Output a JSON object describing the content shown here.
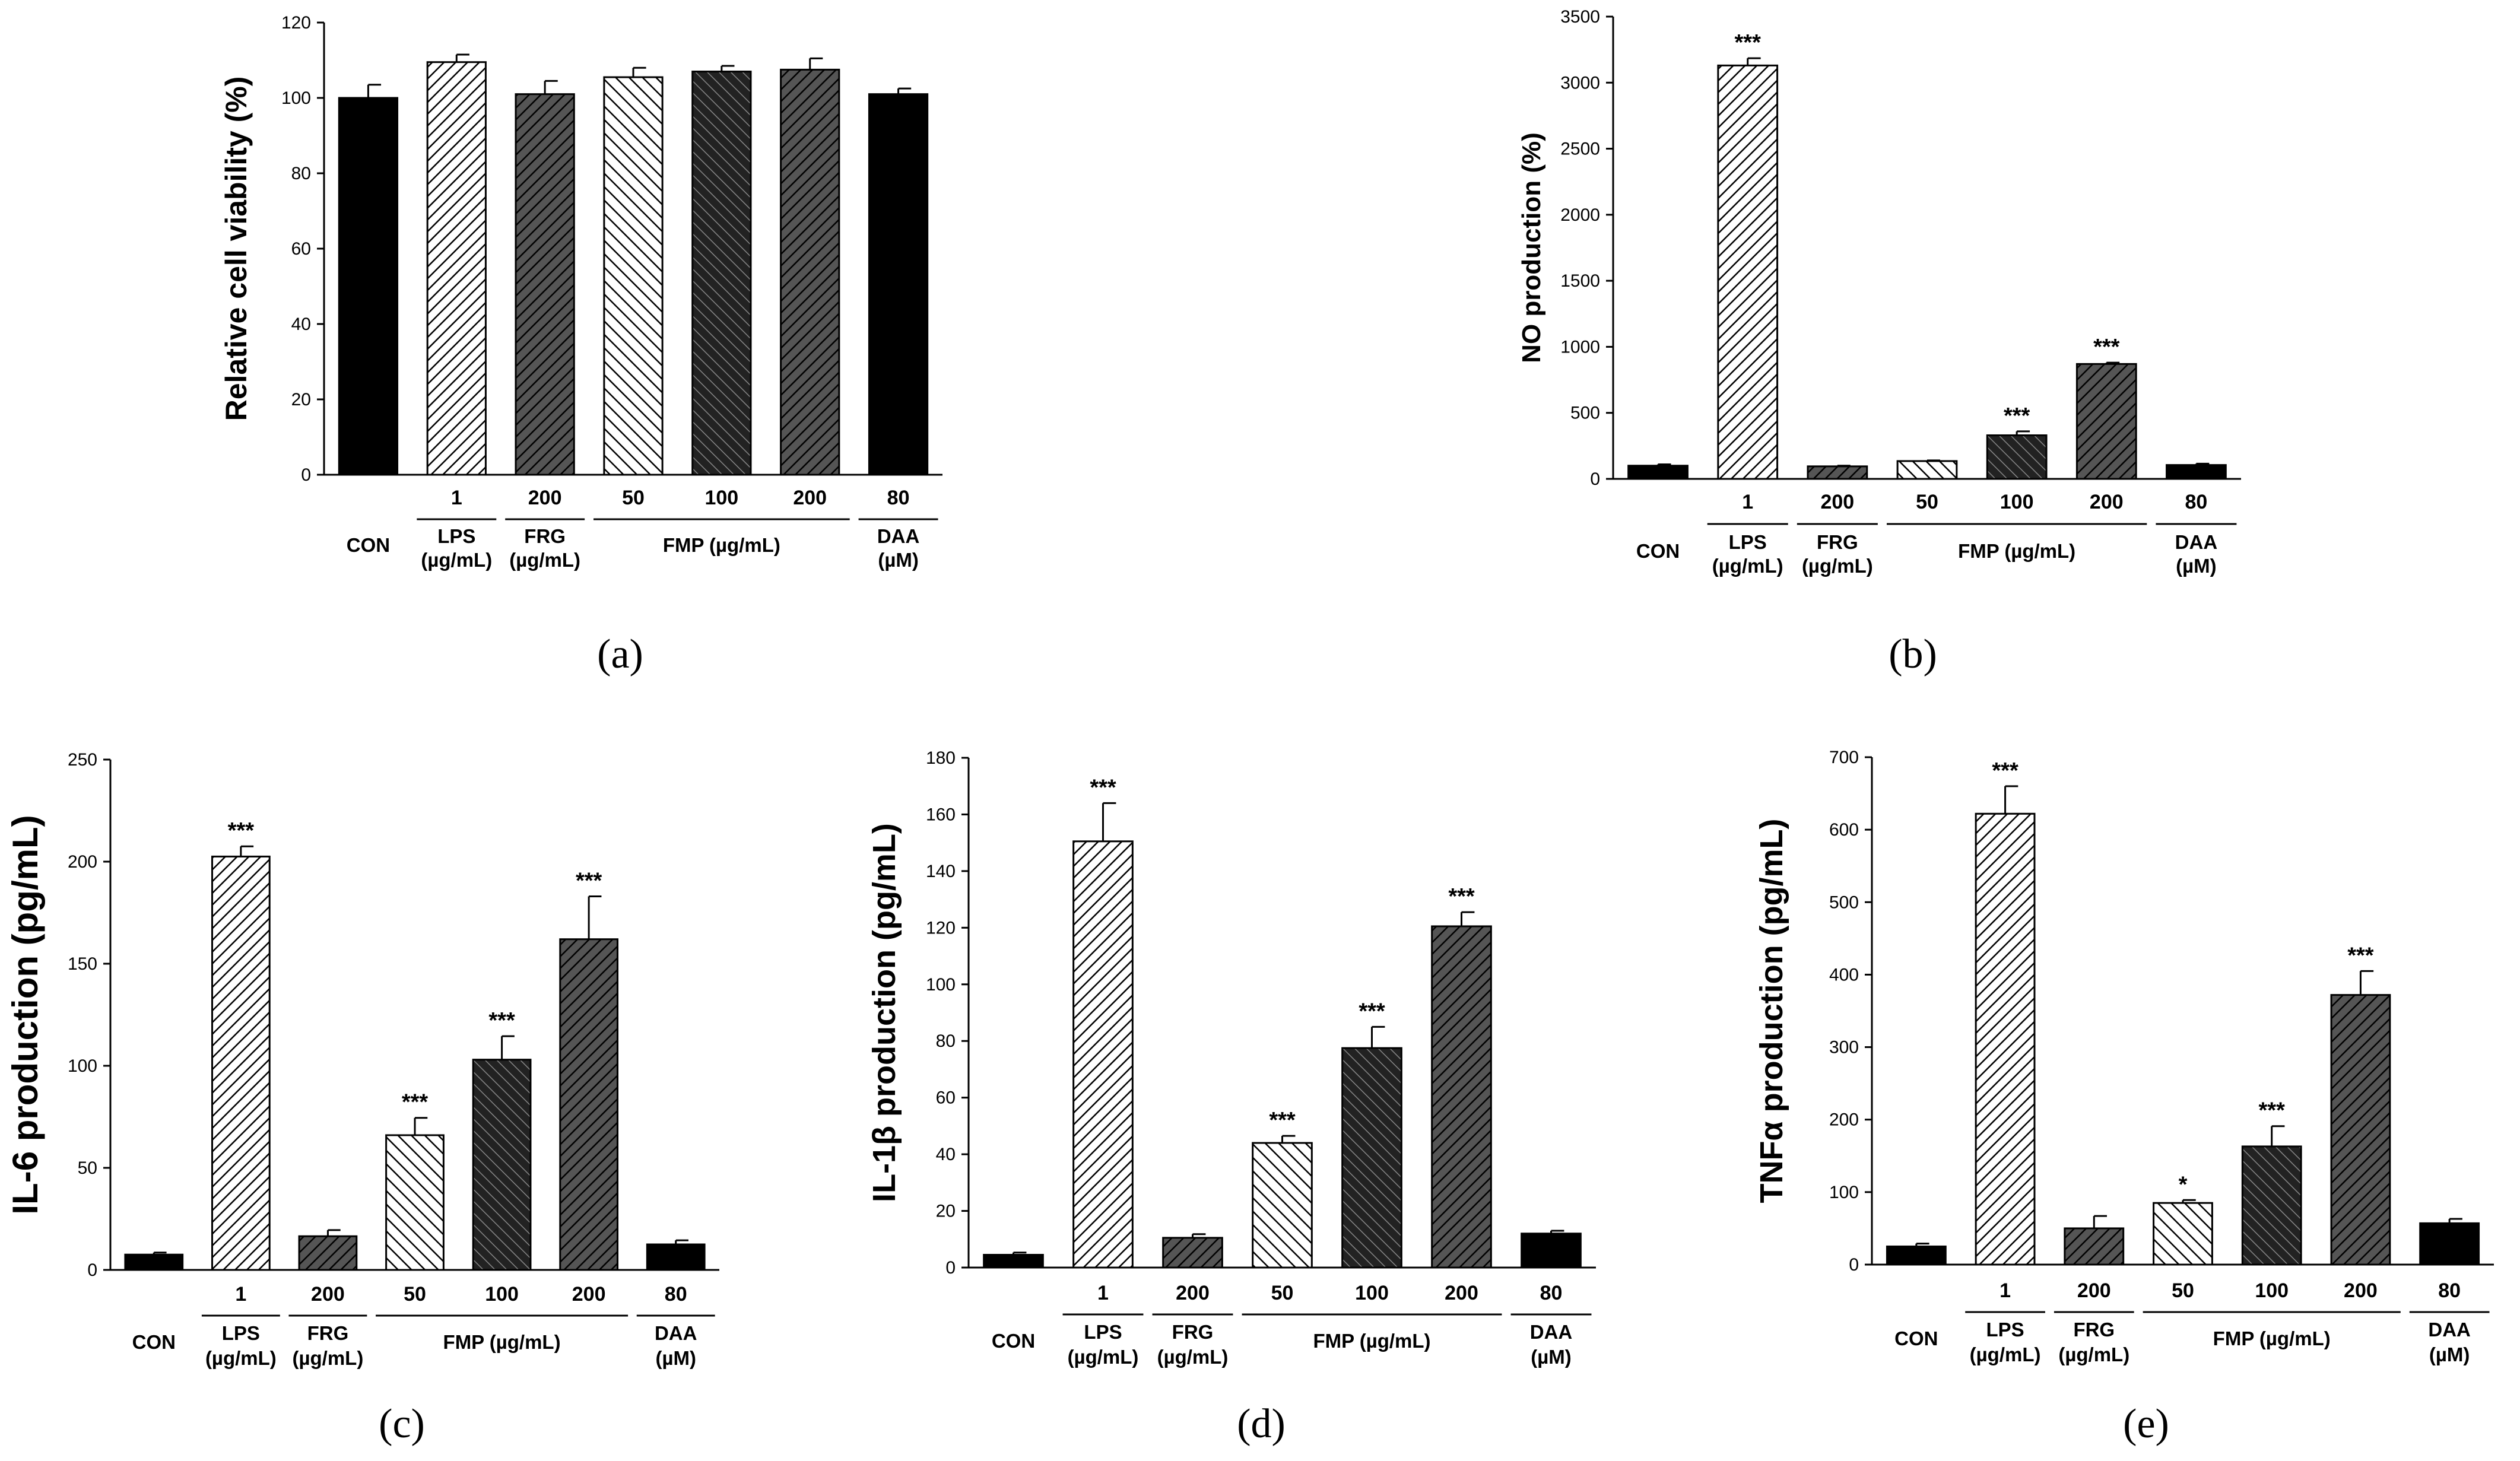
{
  "figure": {
    "panel_labels": [
      "(a)",
      "(b)",
      "(c)",
      "(d)",
      "(e)"
    ]
  },
  "colors": {
    "black": "#000000",
    "dark_gray": "#2b2b2b",
    "hatch_stroke": "#000000",
    "background": "#ffffff"
  },
  "group_labels": {
    "con": "CON",
    "lps": [
      "LPS",
      "(µg/mL)"
    ],
    "frg": [
      "FRG",
      "(µg/mL)"
    ],
    "fmp": "FMP (µg/mL)",
    "daa": [
      "DAA",
      "(µM)"
    ]
  },
  "concentrations": [
    "",
    "1",
    "200",
    "50",
    "100",
    "200",
    "80"
  ],
  "chart_data": [
    {
      "id": "a",
      "type": "bar",
      "title": "",
      "ylabel": "Relative cell viability (%)",
      "ylim": [
        0,
        120
      ],
      "yticks": [
        0,
        20,
        40,
        60,
        80,
        100,
        120
      ],
      "categories": [
        "CON",
        "LPS 1",
        "FRG 200",
        "FMP 50",
        "FMP 100",
        "FMP 200",
        "DAA 80"
      ],
      "values": [
        100,
        109.5,
        101,
        105.5,
        107,
        107.5,
        101
      ],
      "errors": [
        3.5,
        2,
        3.5,
        2.5,
        1.5,
        3,
        1.5
      ],
      "significance": [
        "",
        "",
        "",
        "",
        "",
        "",
        ""
      ]
    },
    {
      "id": "b",
      "type": "bar",
      "title": "",
      "ylabel": "NO production (%)",
      "ylim": [
        0,
        3500
      ],
      "yticks": [
        0,
        500,
        1000,
        1500,
        2000,
        2500,
        3000,
        3500
      ],
      "categories": [
        "CON",
        "LPS 1",
        "FRG 200",
        "FMP 50",
        "FMP 100",
        "FMP 200",
        "DAA 80"
      ],
      "values": [
        100,
        3130,
        95,
        135,
        330,
        870,
        105
      ],
      "errors": [
        10,
        55,
        5,
        5,
        30,
        10,
        10
      ],
      "significance": [
        "",
        "***",
        "",
        "",
        "***",
        "***",
        ""
      ]
    },
    {
      "id": "c",
      "type": "bar",
      "title": "",
      "ylabel": "IL-6 production (pg/mL)",
      "ylim": [
        0,
        250
      ],
      "yticks": [
        0,
        50,
        100,
        150,
        200,
        250
      ],
      "categories": [
        "CON",
        "LPS 1",
        "FRG 200",
        "FMP 50",
        "FMP 100",
        "FMP 200",
        "DAA 80"
      ],
      "values": [
        7.5,
        202.5,
        16.5,
        66,
        103,
        162,
        12.5
      ],
      "errors": [
        1,
        5,
        3,
        8.5,
        11.5,
        21,
        2
      ],
      "significance": [
        "",
        "***",
        "",
        "***",
        "***",
        "***",
        ""
      ]
    },
    {
      "id": "d",
      "type": "bar",
      "title": "",
      "ylabel": "IL-1β production (pg/mL)",
      "ylim": [
        0,
        180
      ],
      "yticks": [
        0,
        20,
        40,
        60,
        80,
        100,
        120,
        140,
        160,
        180
      ],
      "categories": [
        "CON",
        "LPS 1",
        "FRG 200",
        "FMP 50",
        "FMP 100",
        "FMP 200",
        "DAA 80"
      ],
      "values": [
        4.5,
        150.5,
        10.5,
        44,
        77.5,
        120.5,
        12
      ],
      "errors": [
        0.8,
        13.5,
        1.3,
        2.5,
        7.5,
        5,
        1
      ],
      "significance": [
        "",
        "***",
        "",
        "***",
        "***",
        "***",
        ""
      ]
    },
    {
      "id": "e",
      "type": "bar",
      "title": "",
      "ylabel": "TNFα production (pg/mL)",
      "ylim": [
        0,
        700
      ],
      "yticks": [
        0,
        100,
        200,
        300,
        400,
        500,
        600,
        700
      ],
      "categories": [
        "CON",
        "LPS 1",
        "FRG 200",
        "FMP 50",
        "FMP 100",
        "FMP 200",
        "DAA 80"
      ],
      "values": [
        25,
        622,
        50,
        85,
        163,
        372,
        57
      ],
      "errors": [
        4,
        38,
        17,
        4,
        28,
        33,
        6
      ],
      "significance": [
        "",
        "***",
        "",
        "*",
        "***",
        "***",
        ""
      ]
    }
  ]
}
